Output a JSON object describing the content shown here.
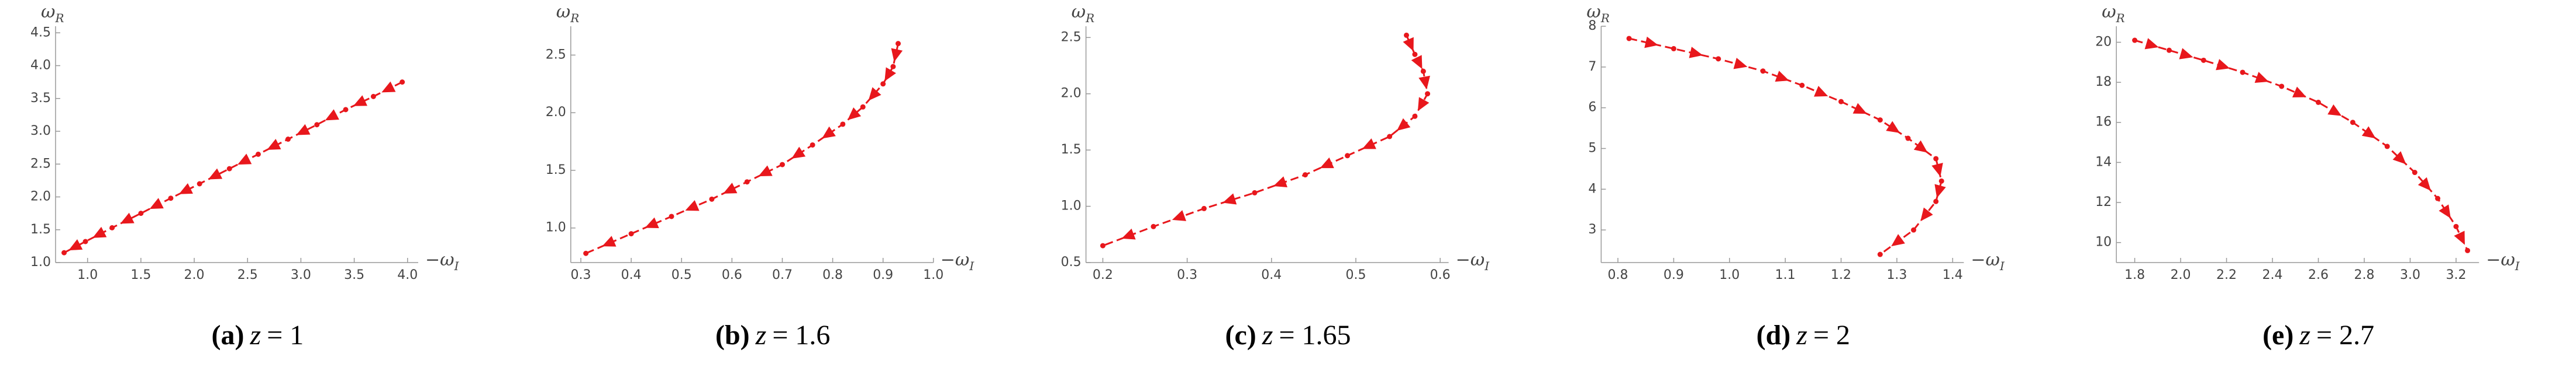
{
  "chart_data": [
    {
      "type": "line",
      "caption_label": "(a)",
      "caption_var": "z",
      "caption_rest": "= 1",
      "xlabel": "−ω",
      "xlabel_sub": "I",
      "ylabel": "ω",
      "ylabel_sub": "R",
      "color": "#e8171c",
      "x": [
        3.95,
        3.68,
        3.42,
        3.15,
        2.88,
        2.6,
        2.33,
        2.05,
        1.78,
        1.5,
        1.23,
        0.98,
        0.78
      ],
      "values": [
        3.75,
        3.53,
        3.33,
        3.1,
        2.88,
        2.65,
        2.43,
        2.2,
        1.98,
        1.75,
        1.53,
        1.32,
        1.15
      ],
      "xlim": [
        0.7,
        4.1
      ],
      "ylim": [
        1.0,
        4.6
      ],
      "xticks": [
        {
          "value": 1,
          "label": "1.0"
        },
        1.5,
        {
          "value": 2,
          "label": "2.0"
        },
        2.5,
        {
          "value": 3,
          "label": "3.0"
        },
        3.5,
        {
          "value": 4,
          "label": "4.0"
        }
      ],
      "yticks": [
        {
          "value": 1,
          "label": "1.0"
        },
        1.5,
        {
          "value": 2,
          "label": "2.0"
        },
        2.5,
        {
          "value": 3,
          "label": "3.0"
        },
        3.5,
        {
          "value": 4,
          "label": "4.0"
        },
        4.5
      ]
    },
    {
      "type": "line",
      "caption_label": "(b)",
      "caption_var": "z",
      "caption_rest": "= 1.6",
      "xlabel": "−ω",
      "xlabel_sub": "I",
      "ylabel": "ω",
      "ylabel_sub": "R",
      "color": "#e8171c",
      "x": [
        0.93,
        0.92,
        0.9,
        0.86,
        0.82,
        0.76,
        0.7,
        0.63,
        0.56,
        0.48,
        0.4,
        0.31
      ],
      "values": [
        2.6,
        2.4,
        2.25,
        2.05,
        1.9,
        1.72,
        1.55,
        1.4,
        1.25,
        1.1,
        0.95,
        0.78
      ],
      "xlim": [
        0.28,
        1.0
      ],
      "ylim": [
        0.7,
        2.75
      ],
      "xticks": [
        0.3,
        0.4,
        0.5,
        0.6,
        0.7,
        0.8,
        0.9,
        {
          "value": 1,
          "label": "1.0"
        }
      ],
      "yticks": [
        {
          "value": 1,
          "label": "1.0"
        },
        1.5,
        {
          "value": 2,
          "label": "2.0"
        },
        2.5
      ]
    },
    {
      "type": "line",
      "caption_label": "(c)",
      "caption_var": "z",
      "caption_rest": "= 1.65",
      "xlabel": "−ω",
      "xlabel_sub": "I",
      "ylabel": "ω",
      "ylabel_sub": "R",
      "color": "#e8171c",
      "x": [
        0.56,
        0.57,
        0.58,
        0.585,
        0.57,
        0.54,
        0.49,
        0.44,
        0.38,
        0.32,
        0.26,
        0.2
      ],
      "values": [
        2.52,
        2.35,
        2.2,
        2.0,
        1.8,
        1.62,
        1.45,
        1.28,
        1.12,
        0.98,
        0.82,
        0.65
      ],
      "xlim": [
        0.18,
        0.61
      ],
      "ylim": [
        0.5,
        2.6
      ],
      "xticks": [
        0.2,
        0.3,
        0.4,
        0.5,
        0.6
      ],
      "yticks": [
        0.5,
        {
          "value": 1,
          "label": "1.0"
        },
        1.5,
        {
          "value": 2,
          "label": "2.0"
        },
        2.5
      ]
    },
    {
      "type": "line",
      "caption_label": "(d)",
      "caption_var": "z",
      "caption_rest": "= 2",
      "xlabel": "−ω",
      "xlabel_sub": "I",
      "ylabel": "ω",
      "ylabel_sub": "R",
      "color": "#e8171c",
      "x": [
        0.82,
        0.9,
        0.98,
        1.06,
        1.13,
        1.2,
        1.27,
        1.32,
        1.37,
        1.38,
        1.37,
        1.33,
        1.27
      ],
      "values": [
        7.7,
        7.45,
        7.2,
        6.9,
        6.55,
        6.15,
        5.7,
        5.25,
        4.75,
        4.2,
        3.7,
        3.0,
        2.4
      ],
      "xlim": [
        0.77,
        1.42
      ],
      "ylim": [
        2.2,
        8
      ],
      "xticks": [
        0.8,
        0.9,
        {
          "value": 1,
          "label": "1.0"
        },
        1.1,
        1.2,
        1.3,
        1.4
      ],
      "yticks": [
        3,
        4,
        5,
        6,
        7,
        8
      ]
    },
    {
      "type": "line",
      "caption_label": "(e)",
      "caption_var": "z",
      "caption_rest": "= 2.7",
      "xlabel": "−ω",
      "xlabel_sub": "I",
      "ylabel": "ω",
      "ylabel_sub": "R",
      "color": "#e8171c",
      "x": [
        1.8,
        1.95,
        2.1,
        2.27,
        2.44,
        2.6,
        2.75,
        2.9,
        3.02,
        3.12,
        3.2,
        3.25
      ],
      "values": [
        20.1,
        19.6,
        19.1,
        18.5,
        17.8,
        17.0,
        16.0,
        14.8,
        13.5,
        12.2,
        10.8,
        9.6
      ],
      "xlim": [
        1.72,
        3.3
      ],
      "ylim": [
        9,
        20.8
      ],
      "xticks": [
        1.8,
        {
          "value": 2,
          "label": "2.0"
        },
        2.2,
        2.4,
        2.6,
        2.8,
        {
          "value": 3,
          "label": "3.0"
        },
        3.2
      ],
      "yticks": [
        10,
        12,
        14,
        16,
        18,
        20
      ]
    }
  ]
}
